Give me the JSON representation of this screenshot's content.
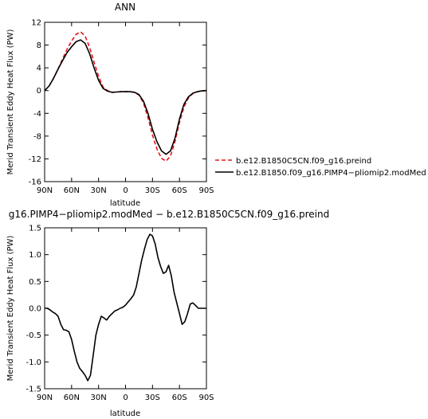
{
  "chart_data": [
    {
      "type": "line",
      "title": "ANN",
      "xlabel": "latitude",
      "ylabel": "Merid Transient Eddy Heat Flux (PW)",
      "xlim": [
        90,
        -90
      ],
      "ylim": [
        -16,
        12
      ],
      "x_ticks": [
        90,
        60,
        30,
        0,
        -30,
        -60,
        -90
      ],
      "x_tick_labels": [
        "90N",
        "60N",
        "30N",
        "0",
        "30S",
        "60S",
        "90S"
      ],
      "y_ticks": [
        -16,
        -12,
        -8,
        -4,
        0,
        4,
        8,
        12
      ],
      "y_tick_labels": [
        "-16",
        "-12",
        "-8",
        "-4",
        "0",
        "4",
        "8",
        "12"
      ],
      "legend_position": "right",
      "series": [
        {
          "name": "b.e12.B1850C5CN.f09_g16.preind",
          "color": "#e8141c",
          "dash": "dashed",
          "x": [
            90,
            85,
            80,
            75,
            70,
            65,
            60,
            55,
            50,
            45,
            40,
            35,
            30,
            25,
            20,
            15,
            10,
            5,
            0,
            -5,
            -10,
            -15,
            -20,
            -25,
            -30,
            -35,
            -40,
            -45,
            -50,
            -55,
            -60,
            -65,
            -70,
            -75,
            -80,
            -85,
            -90
          ],
          "y": [
            0,
            0.8,
            2.2,
            3.8,
            5.6,
            7.3,
            8.7,
            9.9,
            10.3,
            9.6,
            7.6,
            5.0,
            2.5,
            0.6,
            0,
            -0.3,
            -0.25,
            -0.2,
            -0.2,
            -0.2,
            -0.3,
            -0.8,
            -2.2,
            -4.8,
            -7.8,
            -10.3,
            -11.9,
            -12.4,
            -11.5,
            -9.0,
            -5.6,
            -2.9,
            -1.3,
            -0.5,
            -0.2,
            -0.05,
            0
          ]
        },
        {
          "name": "b.e12.B1850.f09_g16.PIMP4−pliomip2.modMed",
          "color": "#000000",
          "dash": "solid",
          "x": [
            90,
            85,
            80,
            75,
            70,
            65,
            60,
            55,
            50,
            45,
            40,
            35,
            30,
            25,
            20,
            15,
            10,
            5,
            0,
            -5,
            -10,
            -15,
            -20,
            -25,
            -30,
            -35,
            -40,
            -45,
            -50,
            -55,
            -60,
            -65,
            -70,
            -75,
            -80,
            -85,
            -90
          ],
          "y": [
            0,
            0.8,
            2.2,
            3.8,
            5.3,
            6.7,
            7.7,
            8.6,
            8.9,
            8.3,
            6.5,
            4.0,
            1.8,
            0.4,
            -0.1,
            -0.3,
            -0.25,
            -0.2,
            -0.2,
            -0.2,
            -0.3,
            -0.7,
            -1.9,
            -4.0,
            -6.8,
            -9.0,
            -10.6,
            -11.2,
            -10.6,
            -8.4,
            -5.0,
            -2.4,
            -1.1,
            -0.45,
            -0.2,
            -0.05,
            0
          ]
        }
      ]
    },
    {
      "type": "line",
      "title": "g16.PIMP4−pliomip2.modMed  −  b.e12.B1850C5CN.f09_g16.preind",
      "xlabel": "latitude",
      "ylabel": "Merid Transient Eddy Heat Flux (PW)",
      "xlim": [
        90,
        -90
      ],
      "ylim": [
        -1.5,
        1.5
      ],
      "x_ticks": [
        90,
        60,
        30,
        0,
        -30,
        -60,
        -90
      ],
      "x_tick_labels": [
        "90N",
        "60N",
        "30N",
        "0",
        "30S",
        "60S",
        "90S"
      ],
      "y_ticks": [
        -1.5,
        -1.0,
        -0.5,
        0.0,
        0.5,
        1.0,
        1.5
      ],
      "y_tick_labels": [
        "-1.5",
        "-1.0",
        "-0.5",
        "0.0",
        "0.5",
        "1.0",
        "1.5"
      ],
      "series": [
        {
          "color": "#000000",
          "dash": "solid",
          "x": [
            90,
            87,
            84,
            81,
            78,
            75,
            72,
            69,
            66,
            63,
            60,
            57,
            54,
            51,
            48,
            45,
            42,
            39,
            36,
            33,
            30,
            27,
            24,
            21,
            18,
            15,
            12,
            9,
            6,
            3,
            0,
            -3,
            -6,
            -9,
            -12,
            -15,
            -18,
            -21,
            -24,
            -27,
            -30,
            -33,
            -36,
            -39,
            -42,
            -45,
            -48,
            -51,
            -54,
            -57,
            -60,
            -63,
            -66,
            -69,
            -72,
            -75,
            -78,
            -81,
            -84,
            -87,
            -90
          ],
          "y": [
            0.0,
            0.0,
            -0.03,
            -0.07,
            -0.1,
            -0.15,
            -0.3,
            -0.4,
            -0.41,
            -0.44,
            -0.58,
            -0.8,
            -1.0,
            -1.12,
            -1.18,
            -1.25,
            -1.35,
            -1.25,
            -0.88,
            -0.5,
            -0.3,
            -0.15,
            -0.18,
            -0.22,
            -0.15,
            -0.1,
            -0.05,
            -0.03,
            0.0,
            0.02,
            0.06,
            0.12,
            0.18,
            0.25,
            0.4,
            0.65,
            0.9,
            1.1,
            1.28,
            1.38,
            1.35,
            1.2,
            0.95,
            0.78,
            0.65,
            0.68,
            0.8,
            0.6,
            0.3,
            0.1,
            -0.1,
            -0.3,
            -0.25,
            -0.1,
            0.08,
            0.1,
            0.05,
            0.0,
            0.0,
            0.0,
            0.0
          ]
        }
      ]
    }
  ]
}
